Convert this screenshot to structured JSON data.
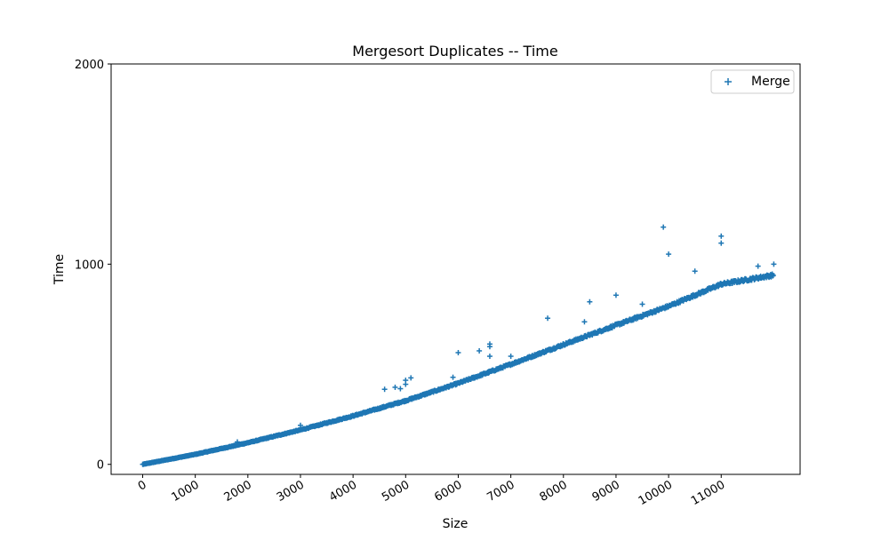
{
  "chart_data": {
    "type": "scatter",
    "title": "Mergesort Duplicates -- Time",
    "xlabel": "Size",
    "ylabel": "Time",
    "xlim": [
      -600,
      12500
    ],
    "ylim": [
      -50,
      2000
    ],
    "xticks": [
      0,
      1000,
      2000,
      3000,
      4000,
      5000,
      6000,
      7000,
      8000,
      9000,
      10000,
      11000
    ],
    "yticks": [
      0,
      1000,
      2000
    ],
    "grid": false,
    "legend": {
      "position": "upper right"
    },
    "marker": "+",
    "color": "#1f77b4",
    "trend": {
      "x_range": [
        0,
        11990
      ],
      "step": 10,
      "points": [
        [
          0,
          0
        ],
        [
          1000,
          50
        ],
        [
          2000,
          108
        ],
        [
          3000,
          172
        ],
        [
          4000,
          242
        ],
        [
          5000,
          318
        ],
        [
          6000,
          405
        ],
        [
          7000,
          500
        ],
        [
          8000,
          598
        ],
        [
          9000,
          695
        ],
        [
          10000,
          790
        ],
        [
          11000,
          900
        ],
        [
          11990,
          945
        ]
      ]
    },
    "series": [
      {
        "name": "Merge",
        "outliers": [
          {
            "x": 1800,
            "y": 112
          },
          {
            "x": 3000,
            "y": 195
          },
          {
            "x": 4600,
            "y": 375
          },
          {
            "x": 4800,
            "y": 385
          },
          {
            "x": 4900,
            "y": 378
          },
          {
            "x": 5000,
            "y": 420
          },
          {
            "x": 5000,
            "y": 400
          },
          {
            "x": 5100,
            "y": 432
          },
          {
            "x": 5900,
            "y": 435
          },
          {
            "x": 6000,
            "y": 558
          },
          {
            "x": 6400,
            "y": 567
          },
          {
            "x": 6600,
            "y": 588
          },
          {
            "x": 6600,
            "y": 601
          },
          {
            "x": 6600,
            "y": 540
          },
          {
            "x": 7000,
            "y": 540
          },
          {
            "x": 7700,
            "y": 730
          },
          {
            "x": 8400,
            "y": 712
          },
          {
            "x": 8500,
            "y": 812
          },
          {
            "x": 9000,
            "y": 845
          },
          {
            "x": 9500,
            "y": 800
          },
          {
            "x": 9900,
            "y": 1185
          },
          {
            "x": 10000,
            "y": 1050
          },
          {
            "x": 10500,
            "y": 965
          },
          {
            "x": 11000,
            "y": 1140
          },
          {
            "x": 11000,
            "y": 1105
          },
          {
            "x": 11700,
            "y": 990
          },
          {
            "x": 12000,
            "y": 1000
          }
        ]
      }
    ]
  }
}
